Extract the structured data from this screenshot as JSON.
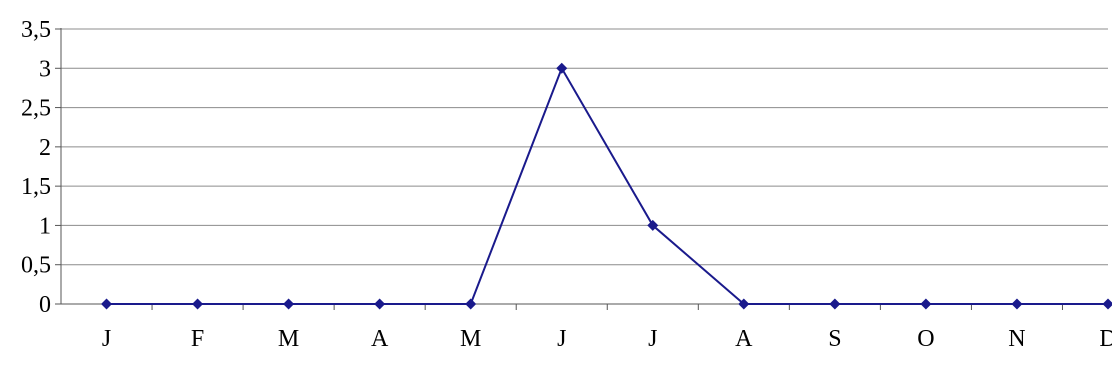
{
  "chart_data": {
    "type": "line",
    "categories": [
      "J",
      "F",
      "M",
      "A",
      "M",
      "J",
      "J",
      "A",
      "S",
      "O",
      "N",
      "D"
    ],
    "series": [
      {
        "values": [
          0,
          0,
          0,
          0,
          0,
          3,
          1,
          0,
          0,
          0,
          0,
          0
        ],
        "color": "#1a1a8c",
        "marker": "diamond"
      }
    ],
    "y_ticks": [
      "0",
      "0,5",
      "1",
      "1,5",
      "2",
      "2,5",
      "3",
      "3,5"
    ],
    "ylim": [
      0,
      3.5
    ],
    "grid": true,
    "legend": "none",
    "title": "",
    "xlabel": "",
    "ylabel": ""
  }
}
